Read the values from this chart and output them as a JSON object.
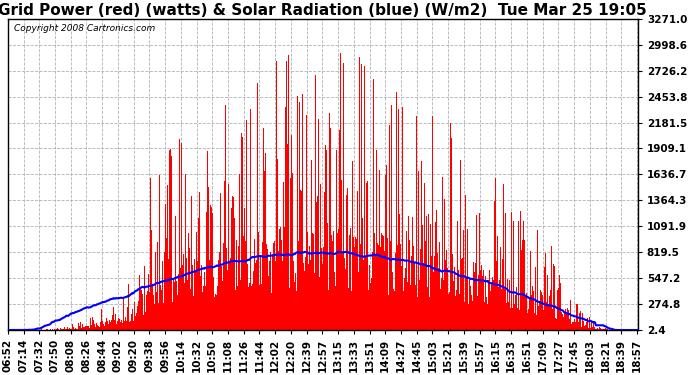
{
  "title": "Grid Power (red) (watts) & Solar Radiation (blue) (W/m2)  Tue Mar 25 19:05",
  "copyright": "Copyright 2008 Cartronics.com",
  "yticks": [
    2.4,
    274.8,
    547.2,
    819.5,
    1091.9,
    1364.3,
    1636.7,
    1909.1,
    2181.5,
    2453.8,
    2726.2,
    2998.6,
    3271.0
  ],
  "ymin": 2.4,
  "ymax": 3271.0,
  "xtick_labels": [
    "06:52",
    "07:14",
    "07:32",
    "07:50",
    "08:08",
    "08:26",
    "08:44",
    "09:02",
    "09:20",
    "09:38",
    "09:56",
    "10:14",
    "10:32",
    "10:50",
    "11:08",
    "11:26",
    "11:44",
    "12:02",
    "12:20",
    "12:39",
    "12:57",
    "13:15",
    "13:33",
    "13:51",
    "14:09",
    "14:27",
    "14:45",
    "15:03",
    "15:21",
    "15:39",
    "15:57",
    "16:15",
    "16:33",
    "16:51",
    "17:09",
    "17:27",
    "17:45",
    "18:03",
    "18:21",
    "18:39",
    "18:57"
  ],
  "background_color": "#ffffff",
  "plot_bg_color": "#ffffff",
  "grid_color": "#aaaaaa",
  "bar_color": "#ff0000",
  "line_color": "#0000ff",
  "title_fontsize": 11,
  "tick_fontsize": 7.5
}
